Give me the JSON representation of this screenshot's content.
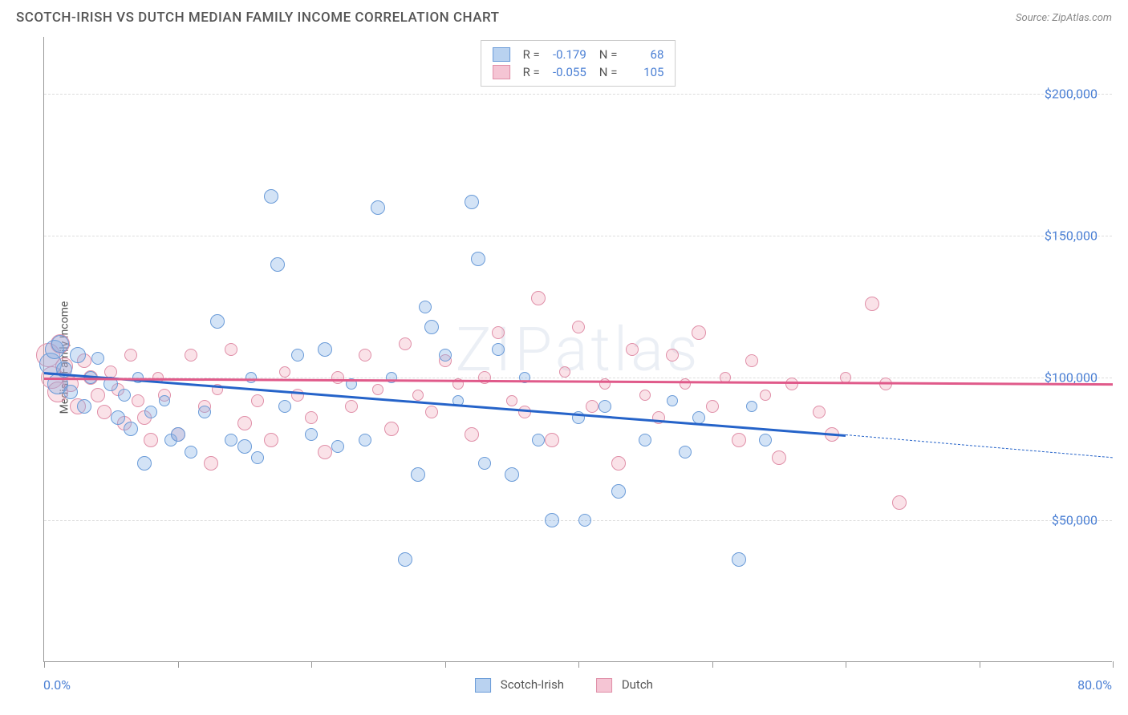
{
  "title": "SCOTCH-IRISH VS DUTCH MEDIAN FAMILY INCOME CORRELATION CHART",
  "source": "Source: ZipAtlas.com",
  "ylabel": "Median Family Income",
  "watermark": "ZIPatlas",
  "axes": {
    "xlim": [
      0,
      80
    ],
    "ylim": [
      0,
      220000
    ],
    "x_start_label": "0.0%",
    "x_end_label": "80.0%",
    "xtick_positions": [
      0,
      10,
      20,
      30,
      40,
      50,
      60,
      70,
      80
    ],
    "yticks": [
      {
        "v": 50000,
        "label": "$50,000"
      },
      {
        "v": 100000,
        "label": "$100,000"
      },
      {
        "v": 150000,
        "label": "$150,000"
      },
      {
        "v": 200000,
        "label": "$200,000"
      }
    ],
    "gridline_color": "#dddddd",
    "tick_label_color": "#4a7fd4"
  },
  "series": {
    "scotch_irish": {
      "label": "Scotch-Irish",
      "fill_color": "rgba(130,175,230,0.35)",
      "stroke_color": "#6a9bd8",
      "legend_fill": "#b9d2f0",
      "legend_stroke": "#6a9bd8",
      "R": "-0.179",
      "N": "68",
      "trend": {
        "y_at_x0": 102000,
        "y_at_x60": 80000,
        "dash_to_x": 80,
        "y_at_x80": 72000,
        "color": "#2563c9"
      },
      "points": [
        {
          "x": 0.5,
          "y": 105000,
          "s": 28
        },
        {
          "x": 0.8,
          "y": 110000,
          "s": 24
        },
        {
          "x": 1,
          "y": 98000,
          "s": 26
        },
        {
          "x": 1.2,
          "y": 112000,
          "s": 22
        },
        {
          "x": 1.5,
          "y": 103000,
          "s": 20
        },
        {
          "x": 2,
          "y": 95000,
          "s": 18
        },
        {
          "x": 2.5,
          "y": 108000,
          "s": 20
        },
        {
          "x": 3,
          "y": 90000,
          "s": 18
        },
        {
          "x": 3.5,
          "y": 100000,
          "s": 16
        },
        {
          "x": 4,
          "y": 107000,
          "s": 16
        },
        {
          "x": 5,
          "y": 98000,
          "s": 18
        },
        {
          "x": 5.5,
          "y": 86000,
          "s": 18
        },
        {
          "x": 6,
          "y": 94000,
          "s": 16
        },
        {
          "x": 6.5,
          "y": 82000,
          "s": 18
        },
        {
          "x": 7,
          "y": 100000,
          "s": 14
        },
        {
          "x": 7.5,
          "y": 70000,
          "s": 18
        },
        {
          "x": 8,
          "y": 88000,
          "s": 16
        },
        {
          "x": 9,
          "y": 92000,
          "s": 14
        },
        {
          "x": 9.5,
          "y": 78000,
          "s": 16
        },
        {
          "x": 10,
          "y": 80000,
          "s": 18
        },
        {
          "x": 11,
          "y": 74000,
          "s": 16
        },
        {
          "x": 12,
          "y": 88000,
          "s": 16
        },
        {
          "x": 13,
          "y": 120000,
          "s": 18
        },
        {
          "x": 14,
          "y": 78000,
          "s": 16
        },
        {
          "x": 15,
          "y": 76000,
          "s": 18
        },
        {
          "x": 15.5,
          "y": 100000,
          "s": 14
        },
        {
          "x": 16,
          "y": 72000,
          "s": 16
        },
        {
          "x": 17,
          "y": 164000,
          "s": 18
        },
        {
          "x": 17.5,
          "y": 140000,
          "s": 18
        },
        {
          "x": 18,
          "y": 90000,
          "s": 16
        },
        {
          "x": 19,
          "y": 108000,
          "s": 16
        },
        {
          "x": 20,
          "y": 80000,
          "s": 16
        },
        {
          "x": 21,
          "y": 110000,
          "s": 18
        },
        {
          "x": 22,
          "y": 76000,
          "s": 16
        },
        {
          "x": 23,
          "y": 98000,
          "s": 14
        },
        {
          "x": 24,
          "y": 78000,
          "s": 16
        },
        {
          "x": 25,
          "y": 160000,
          "s": 18
        },
        {
          "x": 26,
          "y": 100000,
          "s": 14
        },
        {
          "x": 27,
          "y": 36000,
          "s": 18
        },
        {
          "x": 28,
          "y": 66000,
          "s": 18
        },
        {
          "x": 28.5,
          "y": 125000,
          "s": 16
        },
        {
          "x": 29,
          "y": 118000,
          "s": 18
        },
        {
          "x": 30,
          "y": 108000,
          "s": 16
        },
        {
          "x": 31,
          "y": 92000,
          "s": 14
        },
        {
          "x": 32,
          "y": 162000,
          "s": 18
        },
        {
          "x": 32.5,
          "y": 142000,
          "s": 18
        },
        {
          "x": 33,
          "y": 70000,
          "s": 16
        },
        {
          "x": 34,
          "y": 110000,
          "s": 16
        },
        {
          "x": 35,
          "y": 66000,
          "s": 18
        },
        {
          "x": 36,
          "y": 100000,
          "s": 14
        },
        {
          "x": 37,
          "y": 78000,
          "s": 16
        },
        {
          "x": 38,
          "y": 50000,
          "s": 18
        },
        {
          "x": 40,
          "y": 86000,
          "s": 16
        },
        {
          "x": 40.5,
          "y": 50000,
          "s": 16
        },
        {
          "x": 42,
          "y": 90000,
          "s": 16
        },
        {
          "x": 43,
          "y": 60000,
          "s": 18
        },
        {
          "x": 45,
          "y": 78000,
          "s": 16
        },
        {
          "x": 47,
          "y": 92000,
          "s": 14
        },
        {
          "x": 48,
          "y": 74000,
          "s": 16
        },
        {
          "x": 49,
          "y": 86000,
          "s": 16
        },
        {
          "x": 52,
          "y": 36000,
          "s": 18
        },
        {
          "x": 53,
          "y": 90000,
          "s": 14
        },
        {
          "x": 54,
          "y": 78000,
          "s": 16
        }
      ]
    },
    "dutch": {
      "label": "Dutch",
      "fill_color": "rgba(240,160,180,0.3)",
      "stroke_color": "#e08fa8",
      "legend_fill": "#f5c5d4",
      "legend_stroke": "#e08fa8",
      "R": "-0.055",
      "N": "105",
      "trend": {
        "y_at_x0": 100000,
        "y_at_x80": 98000,
        "color": "#e05a8a"
      },
      "points": [
        {
          "x": 0.3,
          "y": 108000,
          "s": 30
        },
        {
          "x": 0.6,
          "y": 100000,
          "s": 28
        },
        {
          "x": 1,
          "y": 95000,
          "s": 26
        },
        {
          "x": 1.2,
          "y": 112000,
          "s": 24
        },
        {
          "x": 1.5,
          "y": 104000,
          "s": 22
        },
        {
          "x": 2,
          "y": 98000,
          "s": 20
        },
        {
          "x": 2.5,
          "y": 90000,
          "s": 20
        },
        {
          "x": 3,
          "y": 106000,
          "s": 18
        },
        {
          "x": 3.5,
          "y": 100000,
          "s": 18
        },
        {
          "x": 4,
          "y": 94000,
          "s": 18
        },
        {
          "x": 4.5,
          "y": 88000,
          "s": 18
        },
        {
          "x": 5,
          "y": 102000,
          "s": 16
        },
        {
          "x": 5.5,
          "y": 96000,
          "s": 16
        },
        {
          "x": 6,
          "y": 84000,
          "s": 18
        },
        {
          "x": 6.5,
          "y": 108000,
          "s": 16
        },
        {
          "x": 7,
          "y": 92000,
          "s": 16
        },
        {
          "x": 7.5,
          "y": 86000,
          "s": 18
        },
        {
          "x": 8,
          "y": 78000,
          "s": 18
        },
        {
          "x": 8.5,
          "y": 100000,
          "s": 14
        },
        {
          "x": 9,
          "y": 94000,
          "s": 16
        },
        {
          "x": 10,
          "y": 80000,
          "s": 18
        },
        {
          "x": 11,
          "y": 108000,
          "s": 16
        },
        {
          "x": 12,
          "y": 90000,
          "s": 16
        },
        {
          "x": 12.5,
          "y": 70000,
          "s": 18
        },
        {
          "x": 13,
          "y": 96000,
          "s": 14
        },
        {
          "x": 14,
          "y": 110000,
          "s": 16
        },
        {
          "x": 15,
          "y": 84000,
          "s": 18
        },
        {
          "x": 16,
          "y": 92000,
          "s": 16
        },
        {
          "x": 17,
          "y": 78000,
          "s": 18
        },
        {
          "x": 18,
          "y": 102000,
          "s": 14
        },
        {
          "x": 19,
          "y": 94000,
          "s": 16
        },
        {
          "x": 20,
          "y": 86000,
          "s": 16
        },
        {
          "x": 21,
          "y": 74000,
          "s": 18
        },
        {
          "x": 22,
          "y": 100000,
          "s": 16
        },
        {
          "x": 23,
          "y": 90000,
          "s": 16
        },
        {
          "x": 24,
          "y": 108000,
          "s": 16
        },
        {
          "x": 25,
          "y": 96000,
          "s": 14
        },
        {
          "x": 26,
          "y": 82000,
          "s": 18
        },
        {
          "x": 27,
          "y": 112000,
          "s": 16
        },
        {
          "x": 28,
          "y": 94000,
          "s": 14
        },
        {
          "x": 29,
          "y": 88000,
          "s": 16
        },
        {
          "x": 30,
          "y": 106000,
          "s": 16
        },
        {
          "x": 31,
          "y": 98000,
          "s": 14
        },
        {
          "x": 32,
          "y": 80000,
          "s": 18
        },
        {
          "x": 33,
          "y": 100000,
          "s": 16
        },
        {
          "x": 34,
          "y": 116000,
          "s": 16
        },
        {
          "x": 35,
          "y": 92000,
          "s": 14
        },
        {
          "x": 36,
          "y": 88000,
          "s": 16
        },
        {
          "x": 37,
          "y": 128000,
          "s": 18
        },
        {
          "x": 38,
          "y": 78000,
          "s": 18
        },
        {
          "x": 39,
          "y": 102000,
          "s": 14
        },
        {
          "x": 40,
          "y": 118000,
          "s": 16
        },
        {
          "x": 41,
          "y": 90000,
          "s": 16
        },
        {
          "x": 42,
          "y": 98000,
          "s": 14
        },
        {
          "x": 43,
          "y": 70000,
          "s": 18
        },
        {
          "x": 44,
          "y": 110000,
          "s": 16
        },
        {
          "x": 45,
          "y": 94000,
          "s": 14
        },
        {
          "x": 46,
          "y": 86000,
          "s": 16
        },
        {
          "x": 47,
          "y": 108000,
          "s": 16
        },
        {
          "x": 48,
          "y": 98000,
          "s": 14
        },
        {
          "x": 49,
          "y": 116000,
          "s": 18
        },
        {
          "x": 50,
          "y": 90000,
          "s": 16
        },
        {
          "x": 51,
          "y": 100000,
          "s": 14
        },
        {
          "x": 52,
          "y": 78000,
          "s": 18
        },
        {
          "x": 53,
          "y": 106000,
          "s": 16
        },
        {
          "x": 54,
          "y": 94000,
          "s": 14
        },
        {
          "x": 55,
          "y": 72000,
          "s": 18
        },
        {
          "x": 56,
          "y": 98000,
          "s": 16
        },
        {
          "x": 58,
          "y": 88000,
          "s": 16
        },
        {
          "x": 59,
          "y": 80000,
          "s": 18
        },
        {
          "x": 60,
          "y": 100000,
          "s": 14
        },
        {
          "x": 62,
          "y": 126000,
          "s": 18
        },
        {
          "x": 63,
          "y": 98000,
          "s": 16
        },
        {
          "x": 64,
          "y": 56000,
          "s": 18
        }
      ]
    }
  }
}
